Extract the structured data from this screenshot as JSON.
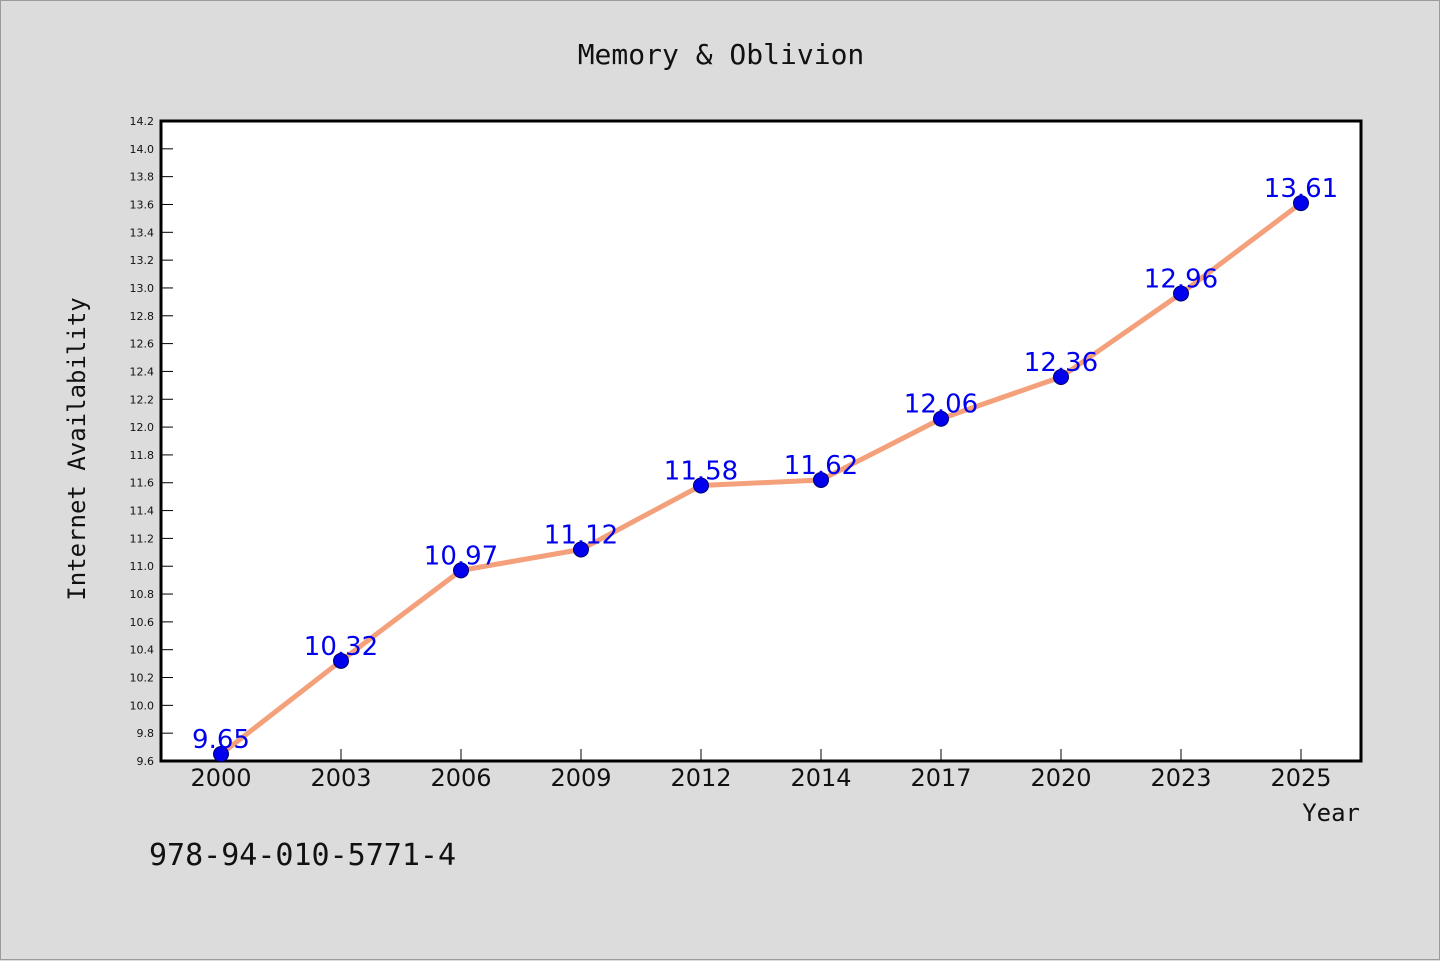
{
  "chart_data": {
    "type": "line",
    "title": "Memory & Oblivion",
    "xlabel": "Year",
    "ylabel": "Internet Availability",
    "categories": [
      "2000",
      "2003",
      "2006",
      "2009",
      "2012",
      "2014",
      "2017",
      "2020",
      "2023",
      "2025"
    ],
    "series": [
      {
        "values": [
          9.65,
          10.32,
          10.97,
          11.12,
          11.58,
          11.62,
          12.06,
          12.36,
          12.96,
          13.61
        ],
        "labels": [
          "9.65",
          "10.32",
          "10.97",
          "11.12",
          "11.58",
          "11.62",
          "12.06",
          "12.36",
          "12.96",
          "13.61"
        ]
      }
    ],
    "ylim": [
      9.6,
      14.2
    ],
    "yticks": [
      "9.6",
      "9.8",
      "10.0",
      "10.2",
      "10.4",
      "10.6",
      "10.8",
      "11.0",
      "11.2",
      "11.4",
      "11.6",
      "11.8",
      "12.0",
      "12.2",
      "12.4",
      "12.6",
      "12.8",
      "13.0",
      "13.2",
      "13.4",
      "13.6",
      "13.8",
      "14.0",
      "14.2"
    ],
    "grid": false,
    "colors": {
      "line": "#f4a07a",
      "marker": "#0000ee",
      "data_label": "#0000ee",
      "background": "#dcdcdc",
      "plot_background": "#ffffff"
    }
  },
  "footer_text": "978-94-010-5771-4"
}
